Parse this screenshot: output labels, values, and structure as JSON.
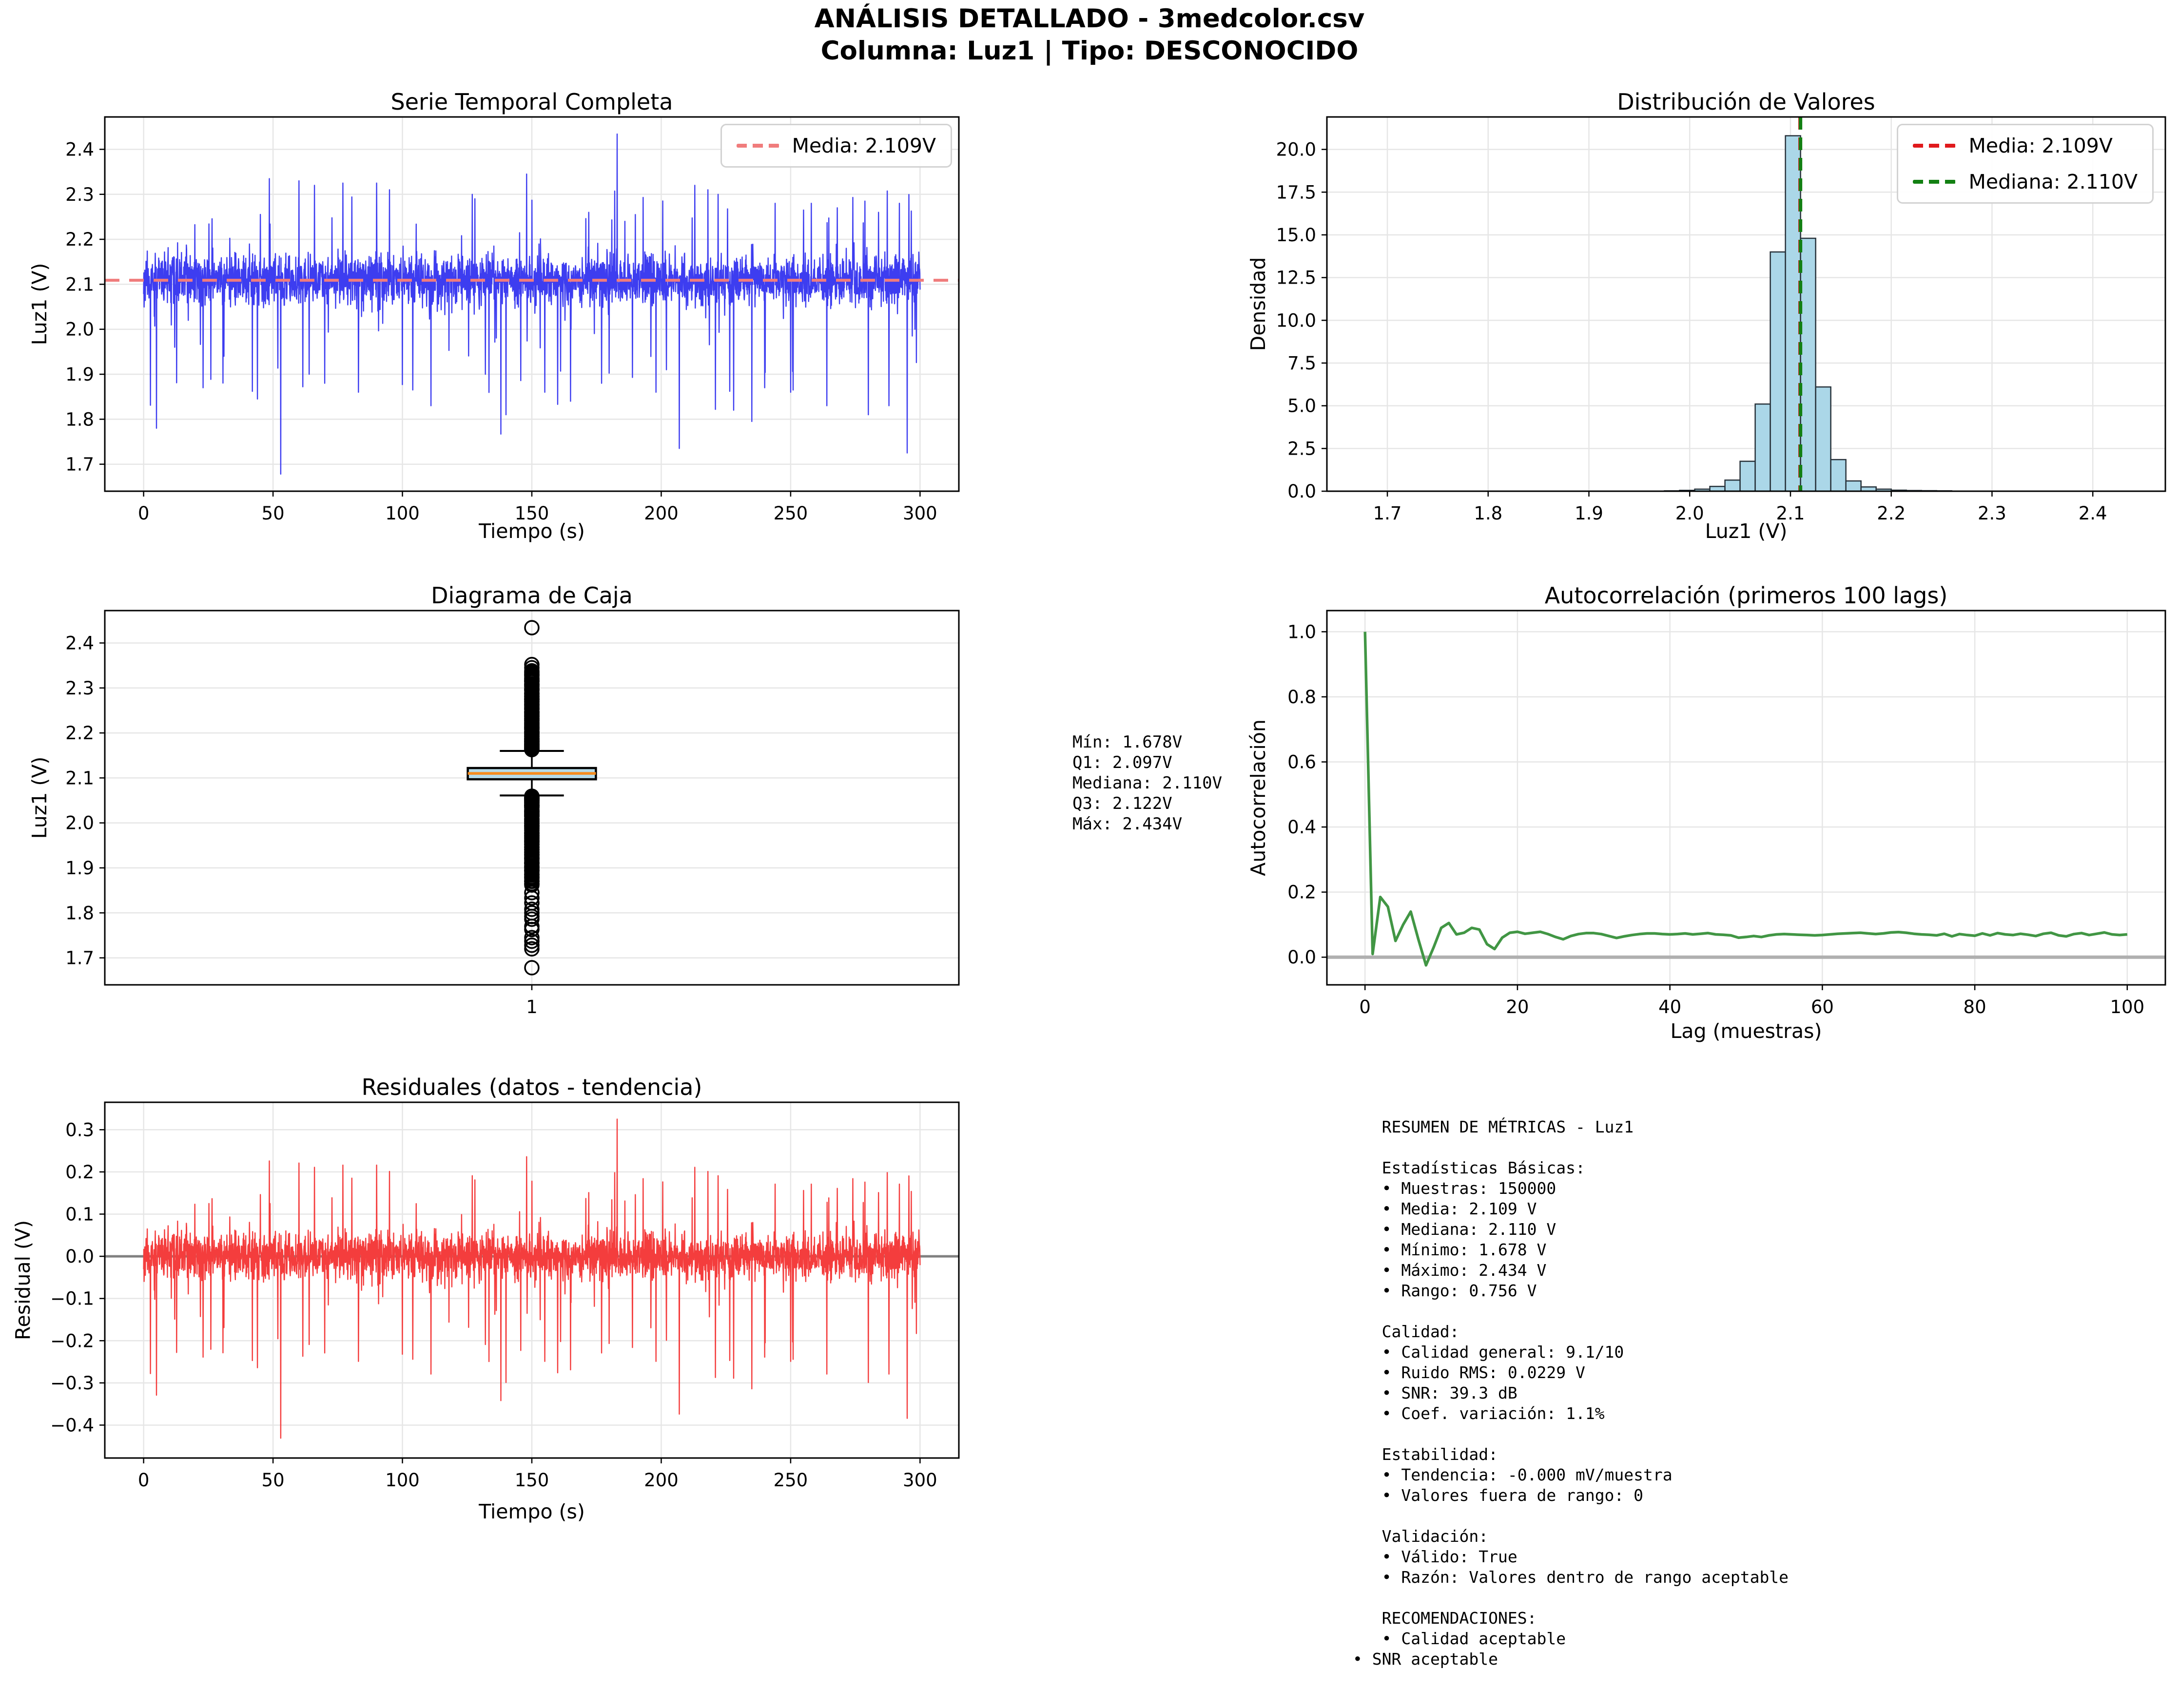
{
  "page_title": {
    "line1": "ANÁLISIS DETALLADO - 3medcolor.csv",
    "line2": "Columna: Luz1 | Tipo: DESCONOCIDO"
  },
  "colors": {
    "series_blue": "#3d3df0",
    "mean_dash_light": "#f07c7c",
    "hist_fill": "#abd7e8",
    "hist_edge": "#28323a",
    "mean_red": "#e0191c",
    "median_green": "#128012",
    "box_fill": "#b5dbe9",
    "box_median_orange": "#f68c1e",
    "acf_green": "#419644",
    "resid_red": "#f43d3d",
    "zero_gray": "#909090",
    "grid": "#e6e6e6"
  },
  "stats_block": {
    "lines": [
      "Mín: 1.678V",
      "Q1: 2.097V",
      "Mediana: 2.110V",
      "Q3: 2.122V",
      "Máx: 2.434V"
    ]
  },
  "summary_block": {
    "lines": [
      "   RESUMEN DE MÉTRICAS - Luz1",
      "",
      "   Estadísticas Básicas:",
      "   • Muestras: 150000",
      "   • Media: 2.109 V",
      "   • Mediana: 2.110 V",
      "   • Mínimo: 1.678 V",
      "   • Máximo: 2.434 V",
      "   • Rango: 0.756 V",
      "",
      "   Calidad:",
      "   • Calidad general: 9.1/10",
      "   • Ruido RMS: 0.0229 V",
      "   • SNR: 39.3 dB",
      "   • Coef. variación: 1.1%",
      "",
      "   Estabilidad:",
      "   • Tendencia: -0.000 mV/muestra",
      "   • Valores fuera de rango: 0",
      "",
      "   Validación:",
      "   • Válido: True",
      "   • Razón: Valores dentro de rango aceptable",
      "",
      "   RECOMENDACIONES:",
      "   • Calidad aceptable",
      "• SNR aceptable"
    ]
  },
  "chart_data": {
    "serie": {
      "type": "line",
      "title": "Serie Temporal Completa",
      "xlabel": "Tiempo (s)",
      "ylabel": "Luz1 (V)",
      "legend": [
        {
          "label": "Media: 2.109V",
          "color": "#f07c7c"
        }
      ],
      "xlim": [
        -15,
        315
      ],
      "ylim": [
        1.64,
        2.472
      ],
      "xticks": {
        "vals": [
          0,
          50,
          100,
          150,
          200,
          250,
          300
        ],
        "labels": [
          "0",
          "50",
          "100",
          "150",
          "200",
          "250",
          "300"
        ]
      },
      "yticks": {
        "vals": [
          1.7,
          1.8,
          1.9,
          2.0,
          2.1,
          2.2,
          2.3,
          2.4
        ],
        "labels": [
          "1.7",
          "1.8",
          "1.9",
          "2.0",
          "2.1",
          "2.2",
          "2.3",
          "2.4"
        ]
      },
      "color": "#3d3df0",
      "lw": 2.4,
      "seed": 11,
      "noise": {
        "n": 3200,
        "x_range": [
          0,
          300
        ],
        "mean": 2.109,
        "sigma": 0.027,
        "spike_down": {
          "prob": 0.018,
          "min": 0.04,
          "max": 0.3,
          "pow": 2.2
        },
        "spike_up": {
          "prob": 0.02,
          "min": 0.04,
          "max": 0.2,
          "pow": 2.0
        }
      },
      "features": [
        [
          5,
          1.78
        ],
        [
          12,
          1.96
        ],
        [
          23,
          1.87
        ],
        [
          31,
          1.94
        ],
        [
          42,
          1.862
        ],
        [
          44,
          1.845
        ],
        [
          53,
          1.678
        ],
        [
          60,
          2.33
        ],
        [
          64,
          1.9
        ],
        [
          66,
          2.32
        ],
        [
          70,
          1.88
        ],
        [
          77,
          2.325
        ],
        [
          83,
          1.86
        ],
        [
          90,
          2.325
        ],
        [
          95,
          2.31
        ],
        [
          100,
          1.877
        ],
        [
          104,
          1.865
        ],
        [
          111,
          1.83
        ],
        [
          118,
          1.953
        ],
        [
          127,
          2.3
        ],
        [
          128,
          2.29
        ],
        [
          132,
          1.9
        ],
        [
          138,
          1.767
        ],
        [
          140,
          1.81
        ],
        [
          148,
          2.345
        ],
        [
          150,
          2.287
        ],
        [
          155,
          1.86
        ],
        [
          160,
          1.833
        ],
        [
          165,
          1.84
        ],
        [
          172,
          2.26
        ],
        [
          177,
          1.88
        ],
        [
          183,
          2.434
        ],
        [
          186,
          2.24
        ],
        [
          190,
          2.255
        ],
        [
          193,
          2.293
        ],
        [
          198,
          1.86
        ],
        [
          202,
          1.91
        ],
        [
          207,
          1.735
        ],
        [
          213,
          2.32
        ],
        [
          218,
          2.31
        ],
        [
          222,
          2.3
        ],
        [
          228,
          1.82
        ],
        [
          235,
          1.795
        ],
        [
          240,
          1.87
        ],
        [
          244,
          2.28
        ],
        [
          250,
          1.86
        ],
        [
          255,
          2.265
        ],
        [
          258,
          2.28
        ],
        [
          264,
          1.83
        ],
        [
          268,
          2.27
        ],
        [
          274,
          2.293
        ],
        [
          280,
          1.81
        ],
        [
          284,
          2.26
        ],
        [
          288,
          1.83
        ],
        [
          292,
          2.28
        ],
        [
          295,
          1.725
        ],
        [
          298,
          2.0
        ]
      ],
      "mean_line": {
        "y": 2.109,
        "color": "#f07c7c",
        "lw": 6,
        "dash": "30 20"
      },
      "stats": {
        "media": 2.109,
        "n_muestras": 150000
      }
    },
    "dist": {
      "type": "bar",
      "title": "Distribución de Valores",
      "xlabel": "Luz1 (V)",
      "ylabel": "Densidad",
      "legend": [
        {
          "label": "Media: 2.109V",
          "color": "#e0191c"
        },
        {
          "label": "Mediana: 2.110V",
          "color": "#128012"
        }
      ],
      "xlim": [
        1.64,
        2.472
      ],
      "ylim": [
        0,
        21.9
      ],
      "xticks": {
        "vals": [
          1.7,
          1.8,
          1.9,
          2.0,
          2.1,
          2.2,
          2.3,
          2.4
        ],
        "labels": [
          "1.7",
          "1.8",
          "1.9",
          "2.0",
          "2.1",
          "2.2",
          "2.3",
          "2.4"
        ]
      },
      "yticks": {
        "vals": [
          0,
          2.5,
          5,
          7.5,
          10,
          12.5,
          15,
          17.5,
          20
        ],
        "labels": [
          "0.0",
          "2.5",
          "5.0",
          "7.5",
          "10.0",
          "12.5",
          "15.0",
          "17.5",
          "20.0"
        ]
      },
      "bin_start": 1.975,
      "bin_width": 0.015,
      "densities": [
        0.02,
        0.05,
        0.12,
        0.28,
        0.65,
        1.75,
        5.1,
        14.0,
        20.8,
        14.8,
        6.1,
        1.85,
        0.6,
        0.25,
        0.12,
        0.06,
        0.04,
        0.03,
        0.02
      ],
      "fill": "#abd7e8",
      "edge": "#28323a",
      "vlines": [
        {
          "x": 2.109,
          "color": "#e0191c",
          "lw": 5,
          "dash": "26 16"
        },
        {
          "x": 2.11,
          "color": "#128012",
          "lw": 7,
          "dash": "26 16"
        }
      ]
    },
    "caja": {
      "type": "box",
      "title": "Diagrama de Caja",
      "ylabel": "Luz1 (V)",
      "xlim": [
        0,
        2
      ],
      "ylim": [
        1.64,
        2.472
      ],
      "xticks": {
        "vals": [
          1
        ],
        "labels": [
          "1"
        ]
      },
      "yticks": {
        "vals": [
          1.7,
          1.8,
          1.9,
          2.0,
          2.1,
          2.2,
          2.3,
          2.4
        ],
        "labels": [
          "1.7",
          "1.8",
          "1.9",
          "2.0",
          "2.1",
          "2.2",
          "2.3",
          "2.4"
        ]
      },
      "box": {
        "center": 1,
        "q1": 2.097,
        "median": 2.11,
        "q3": 2.122,
        "whisk_lo": 2.061,
        "whisk_hi": 2.16,
        "min": 1.678,
        "max": 2.434
      },
      "box_width": 0.3,
      "cap_width": 0.15,
      "fill": "#b5dbe9",
      "median_color": "#f68c1e",
      "outliers": {
        "dense_above": [
          2.163,
          2.338,
          115
        ],
        "sparse_above": [
          2.345,
          2.352,
          2.434
        ],
        "dense_below": [
          2.058,
          1.862,
          120
        ],
        "sparse_below": [
          1.845,
          1.833,
          1.822,
          1.808,
          1.8,
          1.792,
          1.786,
          1.77,
          1.763,
          1.745,
          1.737,
          1.728,
          1.72,
          1.678
        ]
      },
      "seed": 5
    },
    "acf": {
      "type": "line",
      "title": "Autocorrelación (primeros 100 lags)",
      "xlabel": "Lag (muestras)",
      "ylabel": "Autocorrelación",
      "xlim": [
        -5,
        105
      ],
      "ylim": [
        -0.085,
        1.065
      ],
      "xticks": {
        "vals": [
          0,
          20,
          40,
          60,
          80,
          100
        ],
        "labels": [
          "0",
          "20",
          "40",
          "60",
          "80",
          "100"
        ]
      },
      "yticks": {
        "vals": [
          0,
          0.2,
          0.4,
          0.6,
          0.8,
          1.0
        ],
        "labels": [
          "0.0",
          "0.2",
          "0.4",
          "0.6",
          "0.8",
          "1.0"
        ]
      },
      "color": "#419644",
      "lw": 5.5,
      "zero_line": {
        "color": "#b0b0b0",
        "lw": 7
      },
      "y": [
        1.0,
        0.01,
        0.185,
        0.155,
        0.05,
        0.1,
        0.14,
        0.055,
        -0.025,
        0.03,
        0.09,
        0.105,
        0.07,
        0.075,
        0.09,
        0.085,
        0.04,
        0.025,
        0.06,
        0.075,
        0.078,
        0.072,
        0.075,
        0.078,
        0.071,
        0.062,
        0.055,
        0.065,
        0.071,
        0.074,
        0.074,
        0.071,
        0.065,
        0.059,
        0.064,
        0.068,
        0.071,
        0.073,
        0.073,
        0.071,
        0.07,
        0.071,
        0.073,
        0.07,
        0.072,
        0.074,
        0.07,
        0.069,
        0.067,
        0.06,
        0.062,
        0.065,
        0.062,
        0.067,
        0.07,
        0.071,
        0.07,
        0.069,
        0.068,
        0.067,
        0.068,
        0.07,
        0.072,
        0.073,
        0.074,
        0.075,
        0.073,
        0.071,
        0.073,
        0.076,
        0.077,
        0.075,
        0.072,
        0.07,
        0.069,
        0.067,
        0.072,
        0.064,
        0.071,
        0.068,
        0.066,
        0.073,
        0.067,
        0.074,
        0.07,
        0.068,
        0.072,
        0.069,
        0.065,
        0.072,
        0.075,
        0.067,
        0.064,
        0.071,
        0.074,
        0.068,
        0.072,
        0.076,
        0.07,
        0.068,
        0.07
      ]
    },
    "resid": {
      "type": "line",
      "title": "Residuales (datos - tendencia)",
      "xlabel": "Tiempo (s)",
      "ylabel": "Residual (V)",
      "xlim": [
        -15,
        315
      ],
      "ylim": [
        -0.478,
        0.365
      ],
      "xticks": {
        "vals": [
          0,
          50,
          100,
          150,
          200,
          250,
          300
        ],
        "labels": [
          "0",
          "50",
          "100",
          "150",
          "200",
          "250",
          "300"
        ]
      },
      "yticks": {
        "vals": [
          -0.4,
          -0.3,
          -0.2,
          -0.1,
          0.0,
          0.1,
          0.2,
          0.3
        ],
        "labels": [
          "−0.4",
          "−0.3",
          "−0.2",
          "−0.1",
          "0.0",
          "0.1",
          "0.2",
          "0.3"
        ]
      },
      "color": "#f43d3d",
      "lw": 2.4,
      "seed": 11,
      "zero_line": {
        "color": "#808080",
        "lw": 5
      },
      "noise": {
        "n": 3200,
        "x_range": [
          0,
          300
        ],
        "mean": 0,
        "sigma": 0.027,
        "spike_down": {
          "prob": 0.018,
          "min": 0.04,
          "max": 0.3,
          "pow": 2.2
        },
        "spike_up": {
          "prob": 0.02,
          "min": 0.04,
          "max": 0.2,
          "pow": 2.0
        }
      },
      "features": [
        [
          5,
          -0.329
        ],
        [
          12,
          -0.149
        ],
        [
          23,
          -0.239
        ],
        [
          31,
          -0.169
        ],
        [
          42,
          -0.247
        ],
        [
          44,
          -0.264
        ],
        [
          53,
          -0.431
        ],
        [
          60,
          0.221
        ],
        [
          64,
          -0.209
        ],
        [
          66,
          0.211
        ],
        [
          70,
          -0.229
        ],
        [
          77,
          0.216
        ],
        [
          83,
          -0.249
        ],
        [
          90,
          0.216
        ],
        [
          95,
          0.201
        ],
        [
          100,
          -0.232
        ],
        [
          104,
          -0.244
        ],
        [
          111,
          -0.279
        ],
        [
          118,
          -0.156
        ],
        [
          127,
          0.191
        ],
        [
          128,
          0.181
        ],
        [
          132,
          -0.209
        ],
        [
          138,
          -0.342
        ],
        [
          140,
          -0.299
        ],
        [
          148,
          0.236
        ],
        [
          150,
          0.178
        ],
        [
          155,
          -0.249
        ],
        [
          160,
          -0.276
        ],
        [
          165,
          -0.269
        ],
        [
          172,
          0.151
        ],
        [
          177,
          -0.229
        ],
        [
          183,
          0.325
        ],
        [
          186,
          0.131
        ],
        [
          190,
          0.146
        ],
        [
          193,
          0.184
        ],
        [
          198,
          -0.249
        ],
        [
          202,
          -0.199
        ],
        [
          207,
          -0.374
        ],
        [
          213,
          0.211
        ],
        [
          218,
          0.201
        ],
        [
          222,
          0.191
        ],
        [
          228,
          -0.289
        ],
        [
          235,
          -0.314
        ],
        [
          240,
          -0.239
        ],
        [
          244,
          0.171
        ],
        [
          250,
          -0.249
        ],
        [
          255,
          0.156
        ],
        [
          258,
          0.171
        ],
        [
          264,
          -0.279
        ],
        [
          268,
          0.161
        ],
        [
          274,
          0.184
        ],
        [
          280,
          -0.299
        ],
        [
          284,
          0.151
        ],
        [
          288,
          -0.279
        ],
        [
          292,
          0.171
        ],
        [
          295,
          -0.384
        ],
        [
          298,
          -0.109
        ]
      ]
    }
  }
}
